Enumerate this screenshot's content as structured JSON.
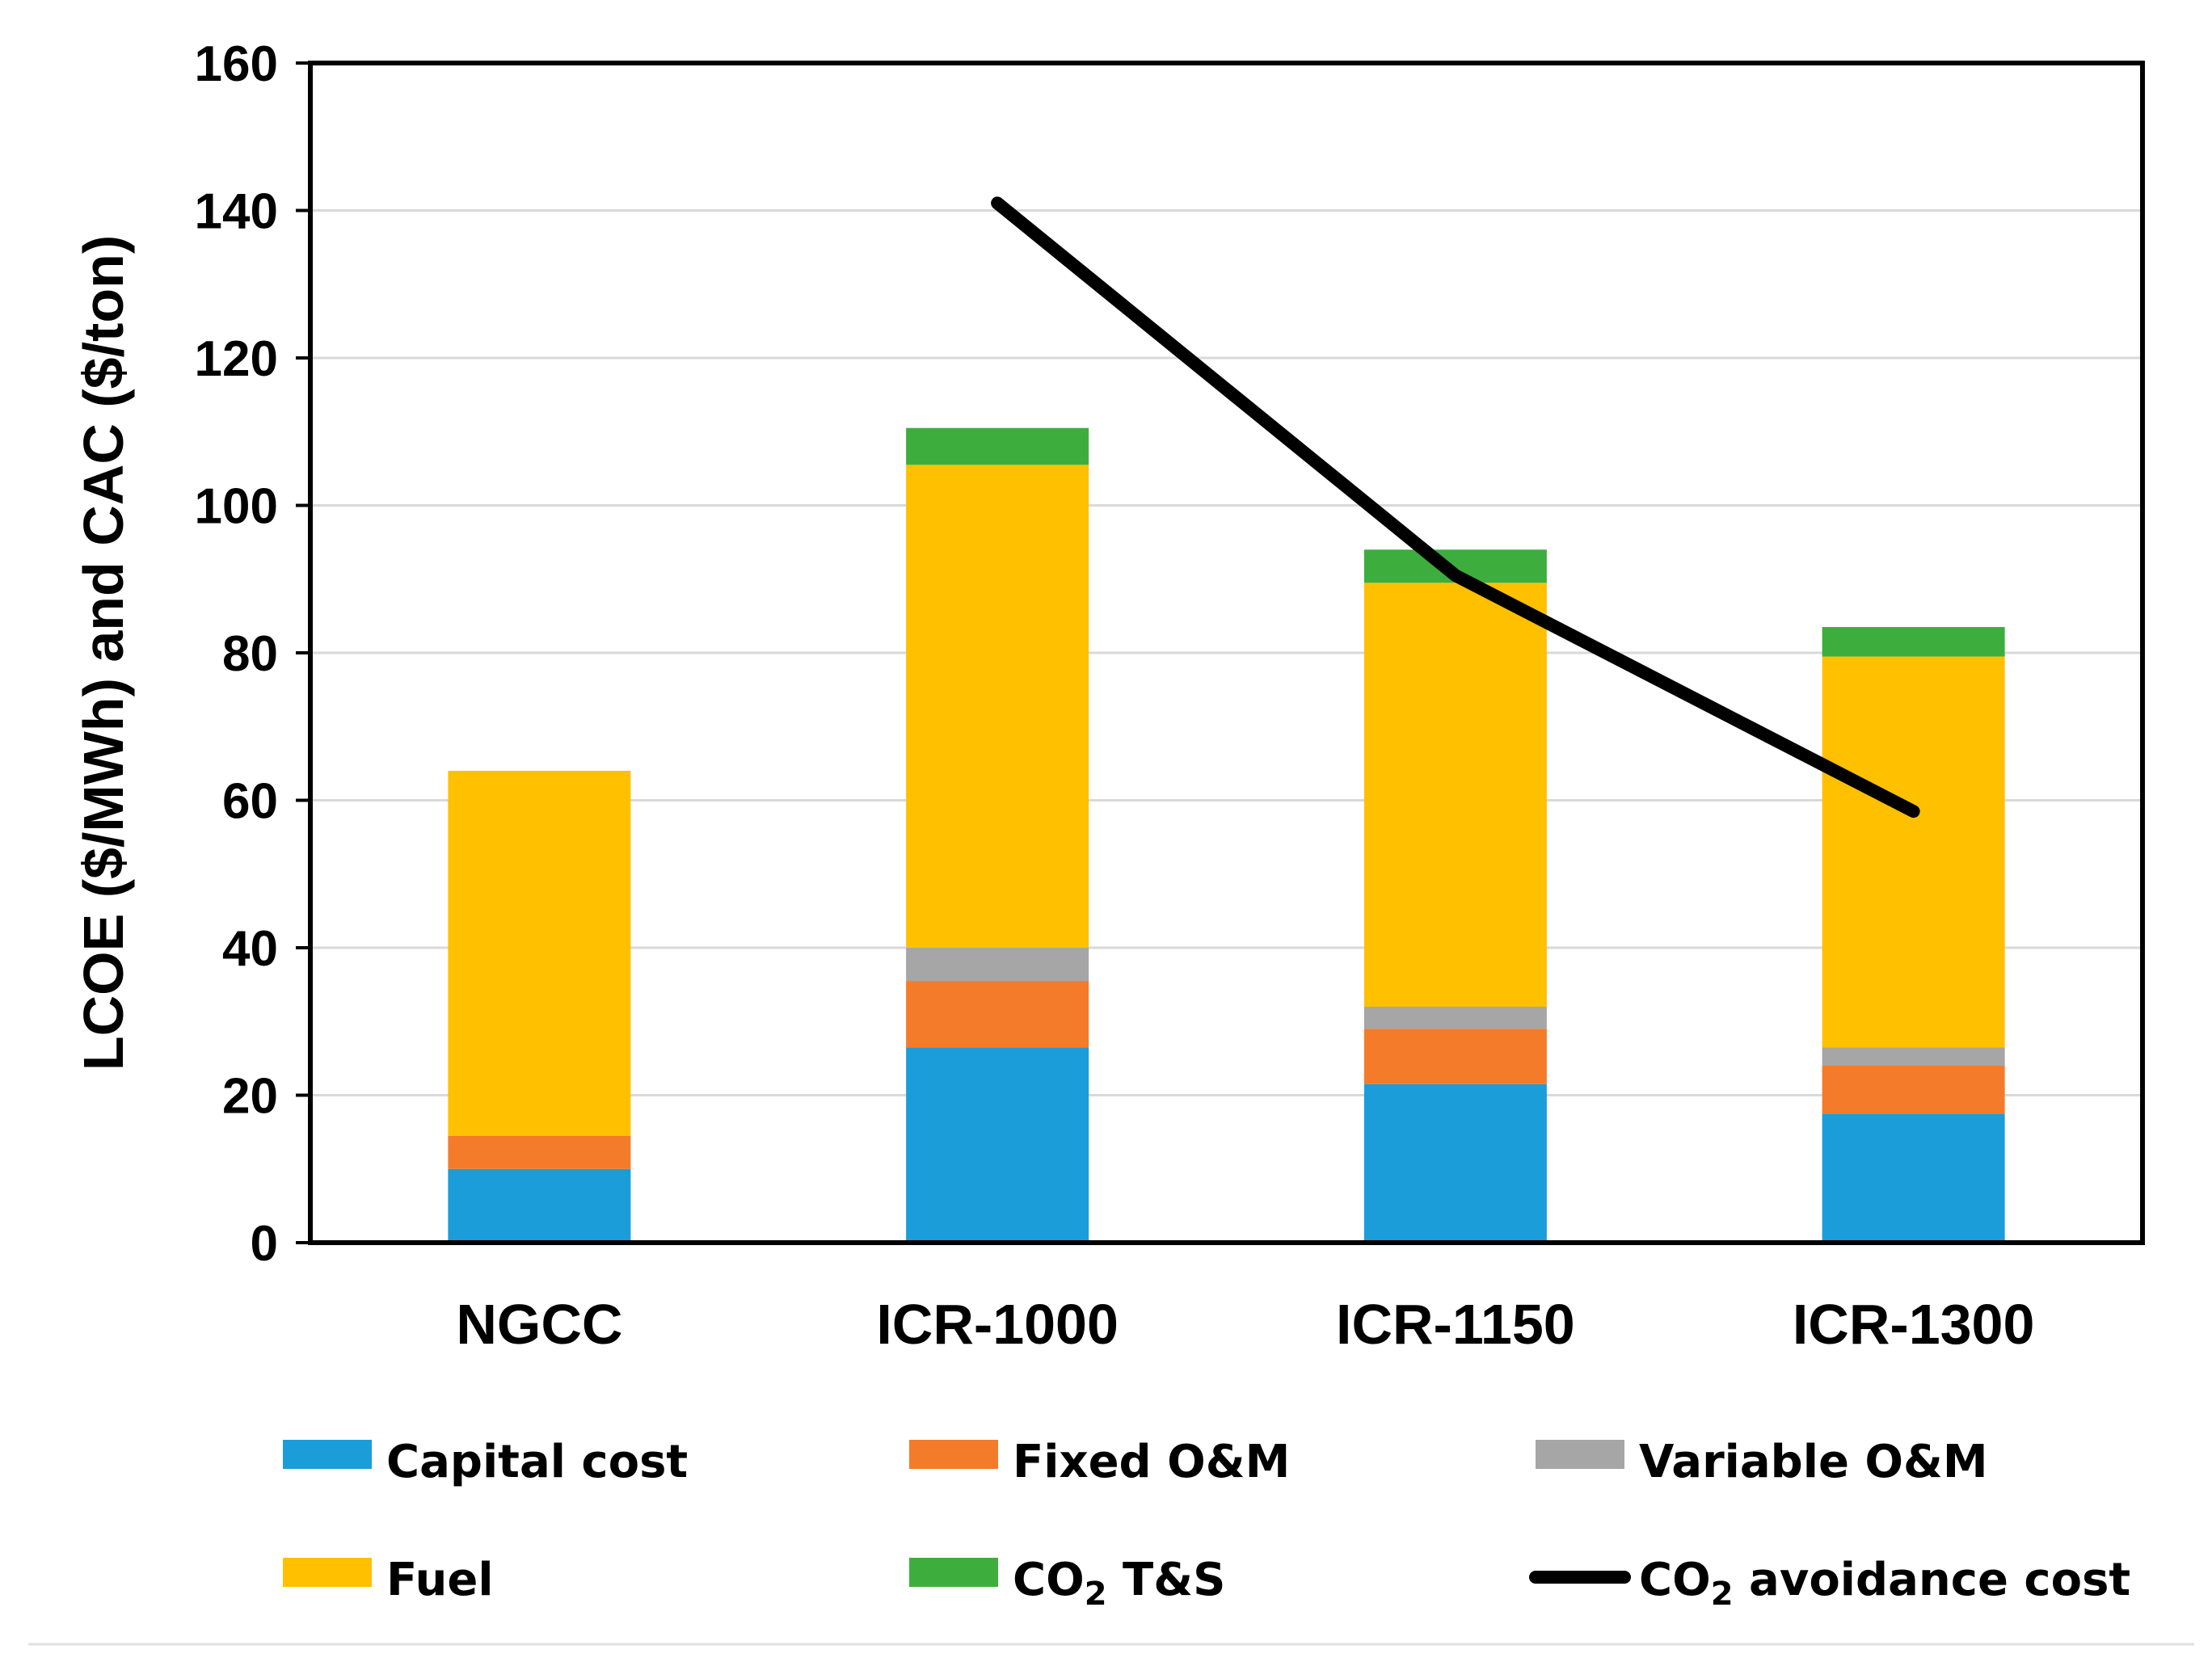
{
  "chart_data": {
    "type": "bar",
    "stacked": true,
    "categories": [
      "NGCC",
      "ICR-1000",
      "ICR-1150",
      "ICR-1300"
    ],
    "series": [
      {
        "name": "Capital cost",
        "color": "#1B9DD9",
        "values": [
          10,
          26.5,
          21.5,
          17.5
        ]
      },
      {
        "name": "Fixed O&M",
        "color": "#F47B2A",
        "values": [
          4.5,
          9,
          7.5,
          6.5
        ]
      },
      {
        "name": "Variable O&M",
        "color": "#A6A6A6",
        "values": [
          0,
          4.5,
          3,
          2.5
        ]
      },
      {
        "name": "Fuel",
        "color": "#FFC000",
        "values": [
          49.5,
          65.5,
          57.5,
          53
        ]
      },
      {
        "name": "CO2 T&S",
        "color": "#3DAE3D",
        "values": [
          0,
          5,
          4.5,
          4
        ]
      }
    ],
    "line_series": {
      "name": "CO2 avoidance cost",
      "color": "#000000",
      "categories": [
        "ICR-1000",
        "ICR-1150",
        "ICR-1300"
      ],
      "values": [
        141,
        90.5,
        58.5
      ]
    },
    "ylabel": "LCOE ($/MWh) and CAC ($/ton)",
    "xlabel": "",
    "ylim": [
      0,
      160
    ],
    "yticks": [
      0,
      20,
      40,
      60,
      80,
      100,
      120,
      140,
      160
    ],
    "grid": true,
    "legend_position": "bottom"
  }
}
